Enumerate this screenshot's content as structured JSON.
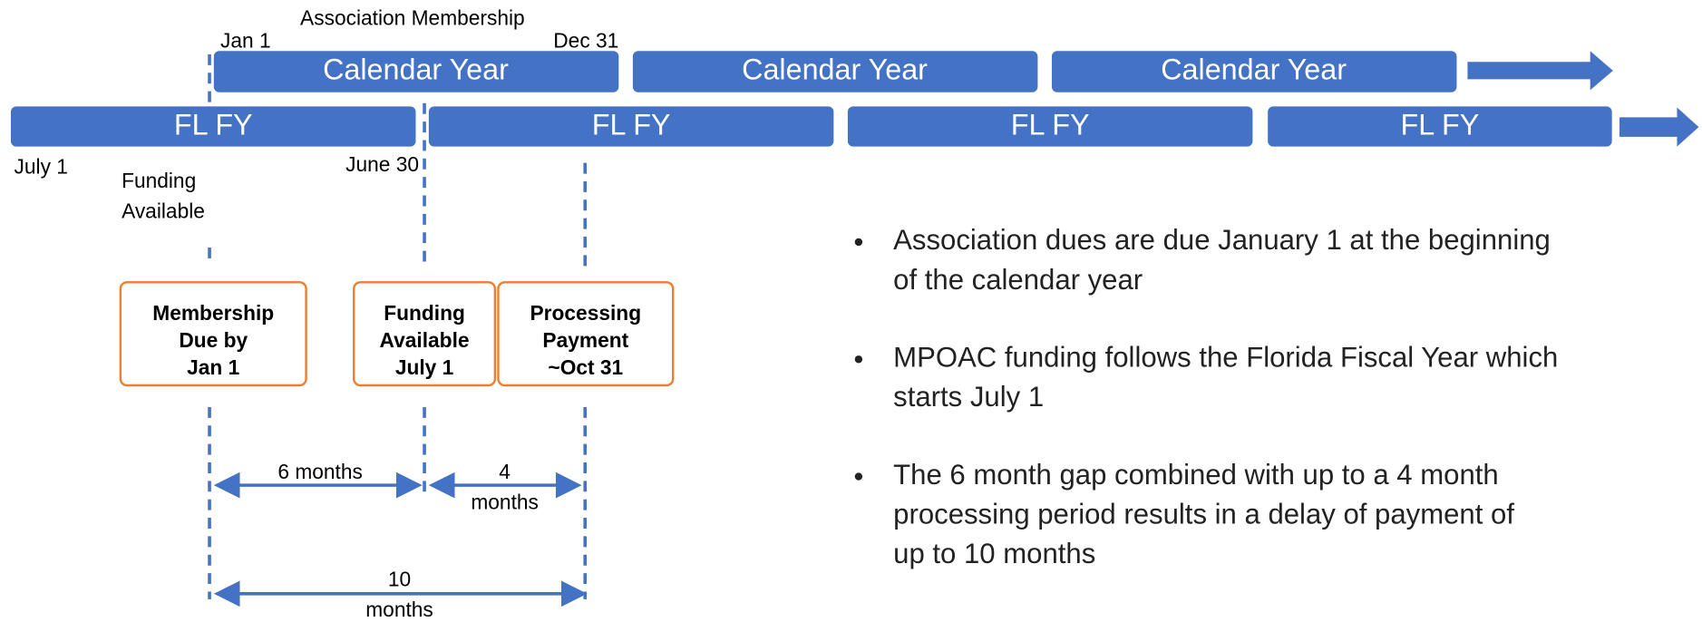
{
  "header": {
    "title": "Association Membership"
  },
  "date_labels": {
    "jan1": "Jan 1",
    "dec31": "Dec 31",
    "july1": "July 1",
    "june30": "June 30"
  },
  "funding_note": [
    "Funding",
    "Available"
  ],
  "calendar_bars": [
    "Calendar Year",
    "Calendar Year",
    "Calendar Year"
  ],
  "fiscal_bars": [
    "FL FY",
    "FL FY",
    "FL FY",
    "FL FY"
  ],
  "boxes": [
    [
      "Membership",
      "Due by",
      "Jan 1"
    ],
    [
      "Funding",
      "Available",
      "July 1"
    ],
    [
      "Processing",
      "Payment",
      "~Oct 31"
    ]
  ],
  "spans": [
    [
      "6 months"
    ],
    [
      "4",
      "months"
    ],
    [
      "10",
      "months"
    ]
  ],
  "bullets": [
    [
      "Association dues are due January 1 at the beginning",
      "of the calendar year"
    ],
    [
      "MPOAC funding follows the Florida Fiscal Year which",
      "starts July 1"
    ],
    [
      "The 6 month gap combined with up to a 4 month",
      "processing period results in a delay of payment of",
      "up to 10 months"
    ]
  ]
}
